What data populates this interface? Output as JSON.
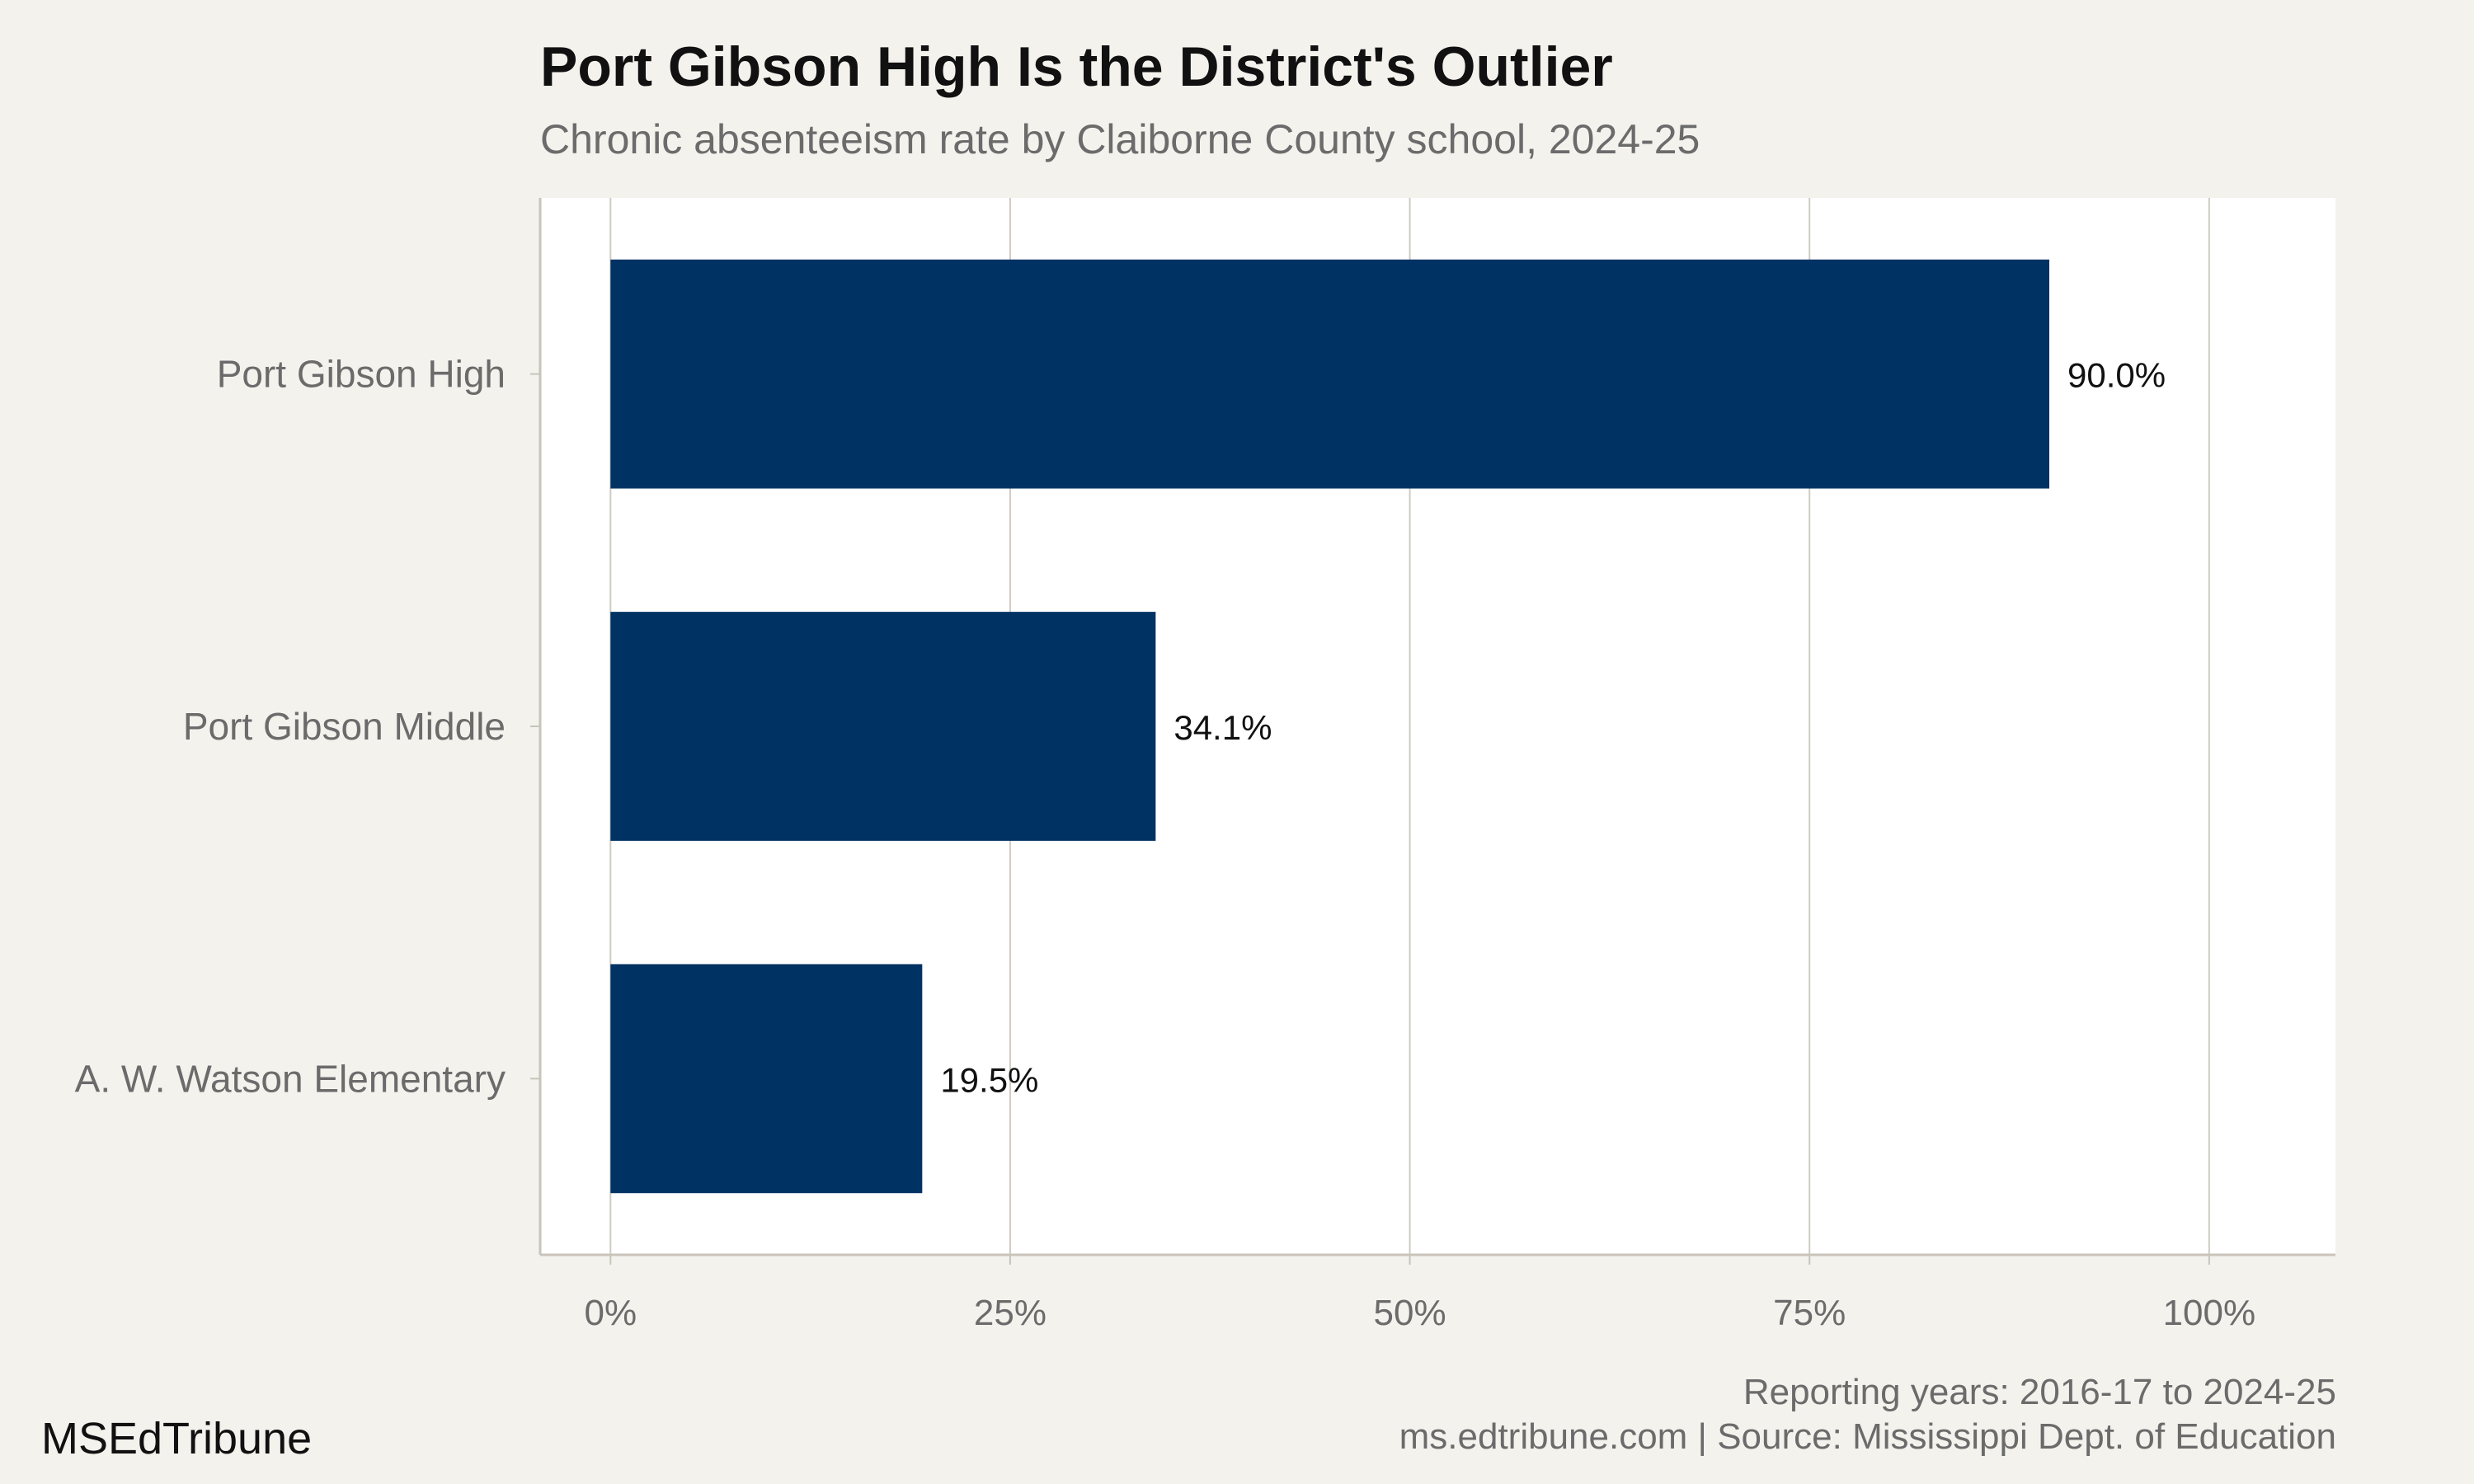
{
  "chart_data": {
    "type": "bar",
    "orientation": "horizontal",
    "title": "Port Gibson High Is the District's Outlier",
    "subtitle": "Chronic absenteeism rate by Claiborne County school, 2024-25",
    "categories": [
      "Port Gibson High",
      "Port Gibson Middle",
      "A. W. Watson Elementary"
    ],
    "values": [
      90.0,
      34.1,
      19.5
    ],
    "value_labels": [
      "90.0%",
      "34.1%",
      "19.5%"
    ],
    "xlabel": "",
    "ylabel": "",
    "xlim": [
      -4.4,
      107.9
    ],
    "x_ticks": [
      0,
      25,
      50,
      75,
      100
    ],
    "x_tick_labels": [
      "0%",
      "25%",
      "50%",
      "75%",
      "100%"
    ],
    "grid": "vertical",
    "bar_color": "#003263"
  },
  "footer": {
    "reporting_years": "Reporting years: 2016-17 to 2024-25",
    "source": "ms.edtribune.com | Source: Mississippi Dept. of Education",
    "brand": "MSEdTribune"
  },
  "colors": {
    "background": "#f4f2ed",
    "panel": "#ffffff",
    "grid": "#cfcbc3",
    "axis": "#c9c4ba",
    "bar": "#003263",
    "label_text": "#6b6b6b",
    "value_text": "#111111"
  }
}
